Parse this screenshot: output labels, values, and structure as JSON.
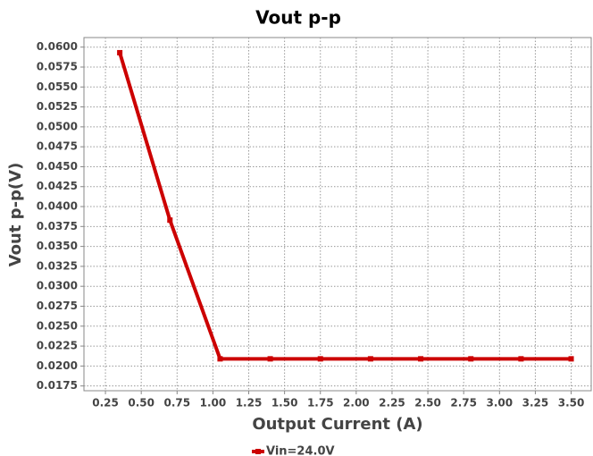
{
  "chart_data": {
    "type": "line",
    "title": "Vout p-p",
    "x_label": "Output Current (A)",
    "y_label": "Vout p-p(V)",
    "x": [
      0.35,
      0.7,
      1.05,
      1.4,
      1.75,
      2.1,
      2.45,
      2.8,
      3.15,
      3.5
    ],
    "series": [
      {
        "name": "Vin=24.0V",
        "color": "#cc0000",
        "values": [
          0.0593,
          0.0383,
          0.0209,
          0.0209,
          0.0209,
          0.0209,
          0.0209,
          0.0209,
          0.0209,
          0.0209
        ]
      }
    ],
    "xlim": [
      0.1,
      3.64
    ],
    "xticks": [
      0.25,
      {
        "value": 0.5,
        "label": "0.50"
      },
      0.75,
      {
        "value": 1.0,
        "label": "1.00"
      },
      1.25,
      {
        "value": 1.5,
        "label": "1.50"
      },
      1.75,
      {
        "value": 2.0,
        "label": "2.00"
      },
      2.25,
      {
        "value": 2.5,
        "label": "2.50"
      },
      2.75,
      {
        "value": 3.0,
        "label": "3.00"
      },
      3.25,
      {
        "value": 3.5,
        "label": "3.50"
      }
    ],
    "ylim": [
      0.0169,
      0.0612
    ],
    "yticks": [
      0.0175,
      {
        "value": 0.02,
        "label": "0.0200"
      },
      0.0225,
      {
        "value": 0.025,
        "label": "0.0250"
      },
      0.0275,
      {
        "value": 0.03,
        "label": "0.0300"
      },
      0.0325,
      {
        "value": 0.035,
        "label": "0.0350"
      },
      0.0375,
      {
        "value": 0.04,
        "label": "0.0400"
      },
      0.0425,
      {
        "value": 0.045,
        "label": "0.0450"
      },
      0.0475,
      {
        "value": 0.05,
        "label": "0.0500"
      },
      0.0525,
      {
        "value": 0.055,
        "label": "0.0550"
      },
      0.0575,
      {
        "value": 0.06,
        "label": "0.0600"
      }
    ],
    "grid": true,
    "legend": "bottom"
  }
}
